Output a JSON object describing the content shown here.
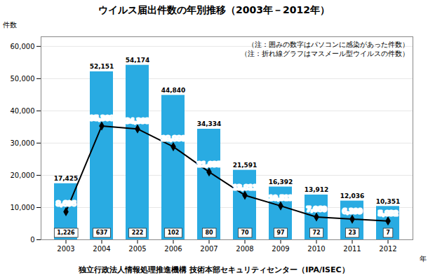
{
  "chart_data": {
    "type": "bar",
    "title": "ウイルス届出件数の年別推移（2003年－2012年）",
    "ylabel": "件数",
    "xlabel": "年",
    "categories": [
      "2003",
      "2004",
      "2005",
      "2006",
      "2007",
      "2008",
      "2009",
      "2010",
      "2011",
      "2012"
    ],
    "series": [
      {
        "type": "bar",
        "color": "#29ABE2",
        "data_labels": true,
        "values": [
          17425,
          52151,
          54174,
          44840,
          34334,
          21591,
          16392,
          13912,
          12036,
          10351
        ],
        "value_labels": [
          "17,425",
          "52,151",
          "54,174",
          "44,840",
          "34,334",
          "21,591",
          "16,392",
          "13,912",
          "12,036",
          "10,351"
        ]
      },
      {
        "type": "line",
        "color": "#000000",
        "marker": "diamond",
        "data_labels": true,
        "values": [
          8696,
          35308,
          34393,
          28880,
          21035,
          13811,
          10513,
          7060,
          6399,
          5832
        ],
        "value_labels": [
          "8,696",
          "35,308",
          "34,393",
          "28,880",
          "21,035",
          "13,811",
          "10,513",
          "7,060",
          "6,399",
          "5,832"
        ]
      }
    ],
    "boxed_values": [
      1226,
      637,
      222,
      102,
      80,
      70,
      97,
      72,
      23,
      7
    ],
    "boxed_value_labels": [
      "1,226",
      "637",
      "222",
      "102",
      "80",
      "70",
      "97",
      "72",
      "23",
      "7"
    ],
    "annotations": [
      "（注：囲みの数字はパソコンに感染があった件数）",
      "（注：折れ線グラフはマスメール型ウイルスの件数）"
    ],
    "caption": "独立行政法人情報処理推進機構 技術本部セキュリティセンター（IPA/ISEC）",
    "ylim": [
      0,
      63000
    ],
    "yticks": [
      0,
      {
        "value": 10000,
        "label": "10,000"
      },
      {
        "value": 20000,
        "label": "20,000"
      },
      {
        "value": 30000,
        "label": "30,000"
      },
      {
        "value": 40000,
        "label": "40,000"
      },
      {
        "value": 50000,
        "label": "50,000"
      },
      {
        "value": 60000,
        "label": "60,000"
      }
    ],
    "grid": true
  }
}
